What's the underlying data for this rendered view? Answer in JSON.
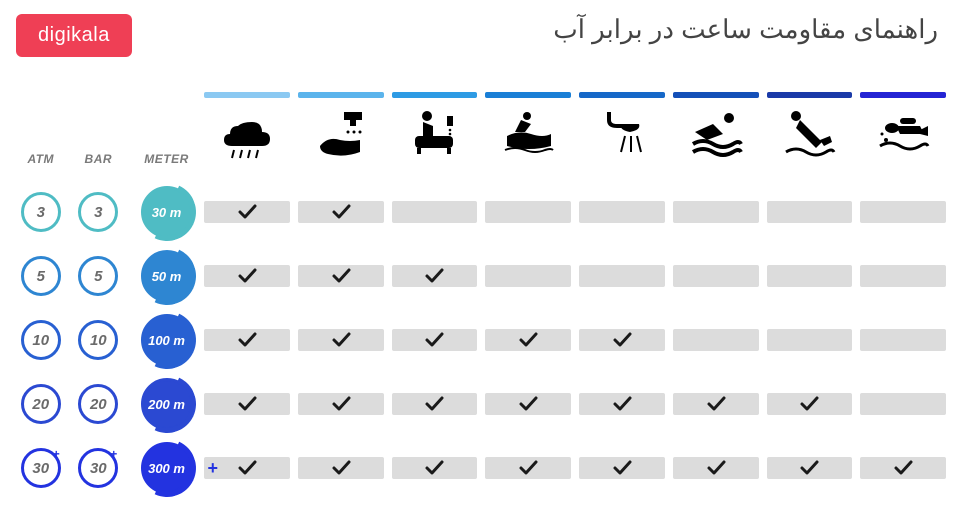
{
  "brand": {
    "label": "digikala",
    "bg": "#ef3f55",
    "fg": "#ffffff"
  },
  "title": "راهنمای مقاومت ساعت در برابر آب",
  "unit_headers": [
    "ATM",
    "BAR",
    "METER"
  ],
  "colors": {
    "cell_bg": "#dcdcdc",
    "check": "#1a1a1a",
    "unit_text": "#7a7a7a"
  },
  "activities": [
    {
      "name": "rain",
      "bar_color": "#8bc9f2"
    },
    {
      "name": "wash",
      "bar_color": "#5bb4ec"
    },
    {
      "name": "bath",
      "bar_color": "#2e9be4"
    },
    {
      "name": "jetski",
      "bar_color": "#1a7fd6"
    },
    {
      "name": "shower",
      "bar_color": "#1668c8"
    },
    {
      "name": "swim",
      "bar_color": "#1450b8"
    },
    {
      "name": "dive",
      "bar_color": "#1a3aa8"
    },
    {
      "name": "scuba",
      "bar_color": "#2424d4"
    }
  ],
  "rows": [
    {
      "atm": "3",
      "bar": "3",
      "meter": "30 m",
      "ring": "#4fbcc4",
      "fill": "#4fbcc4",
      "plus": false,
      "checks": [
        true,
        true,
        false,
        false,
        false,
        false,
        false,
        false
      ]
    },
    {
      "atm": "5",
      "bar": "5",
      "meter": "50 m",
      "ring": "#2e86d2",
      "fill": "#2e86d2",
      "plus": false,
      "checks": [
        true,
        true,
        true,
        false,
        false,
        false,
        false,
        false
      ]
    },
    {
      "atm": "10",
      "bar": "10",
      "meter": "100 m",
      "ring": "#2860d2",
      "fill": "#2860d2",
      "plus": false,
      "checks": [
        true,
        true,
        true,
        true,
        true,
        false,
        false,
        false
      ]
    },
    {
      "atm": "20",
      "bar": "20",
      "meter": "200 m",
      "ring": "#2b49d2",
      "fill": "#2b49d2",
      "plus": false,
      "checks": [
        true,
        true,
        true,
        true,
        true,
        true,
        true,
        false
      ]
    },
    {
      "atm": "30",
      "bar": "30",
      "meter": "300 m",
      "ring": "#2333e0",
      "fill": "#2333e0",
      "plus": true,
      "checks": [
        true,
        true,
        true,
        true,
        true,
        true,
        true,
        true
      ]
    }
  ]
}
